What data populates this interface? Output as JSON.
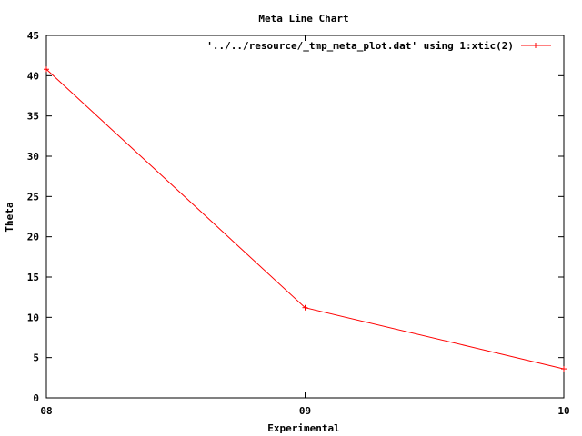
{
  "chart_data": {
    "type": "line",
    "title": "Meta Line Chart",
    "xlabel": "Experimental",
    "ylabel": "Theta",
    "categories": [
      "08",
      "09",
      "10"
    ],
    "x": [
      0,
      1,
      2
    ],
    "ylim": [
      0,
      45
    ],
    "yticks": [
      0,
      5,
      10,
      15,
      20,
      25,
      30,
      35,
      40,
      45
    ],
    "grid": false,
    "legend_position": "top-right",
    "series": [
      {
        "name": "'../../resource/_tmp_meta_plot.dat' using 1:xtic(2)",
        "values": [
          40.8,
          11.2,
          3.6
        ],
        "color": "#ff0000",
        "marker": "plus"
      }
    ]
  }
}
